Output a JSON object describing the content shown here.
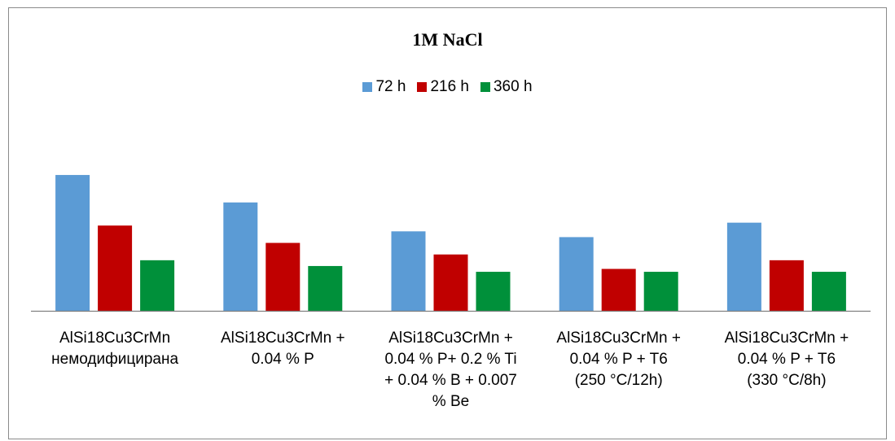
{
  "chart_data": {
    "type": "bar",
    "title": "1M NaCl",
    "categories": [
      [
        "AlSi18Cu3CrMn",
        "немодифицирана"
      ],
      [
        "AlSi18Cu3CrMn +",
        "0.04 % P"
      ],
      [
        "AlSi18Cu3CrMn +",
        "0.04 % P+ 0.2 % Ti",
        "+ 0.04 % B + 0.007",
        "% Be"
      ],
      [
        "AlSi18Cu3CrMn +",
        "0.04 % P + T6",
        "(250 °C/12h)"
      ],
      [
        "AlSi18Cu3CrMn +",
        "0.04 % P + T6",
        "(330 °C/8h)"
      ]
    ],
    "series": [
      {
        "name": "72 h",
        "color": "#5B9BD5",
        "values": [
          4.7,
          3.75,
          2.75,
          2.55,
          3.05
        ]
      },
      {
        "name": "216 h",
        "color": "#C00000",
        "values": [
          2.95,
          2.35,
          1.95,
          1.45,
          1.75
        ]
      },
      {
        "name": "360 h",
        "color": "#00903A",
        "values": [
          1.75,
          1.55,
          1.35,
          1.35,
          1.35
        ]
      }
    ],
    "ylim": [
      0,
      5
    ],
    "grid": false,
    "legend_position": "top"
  }
}
